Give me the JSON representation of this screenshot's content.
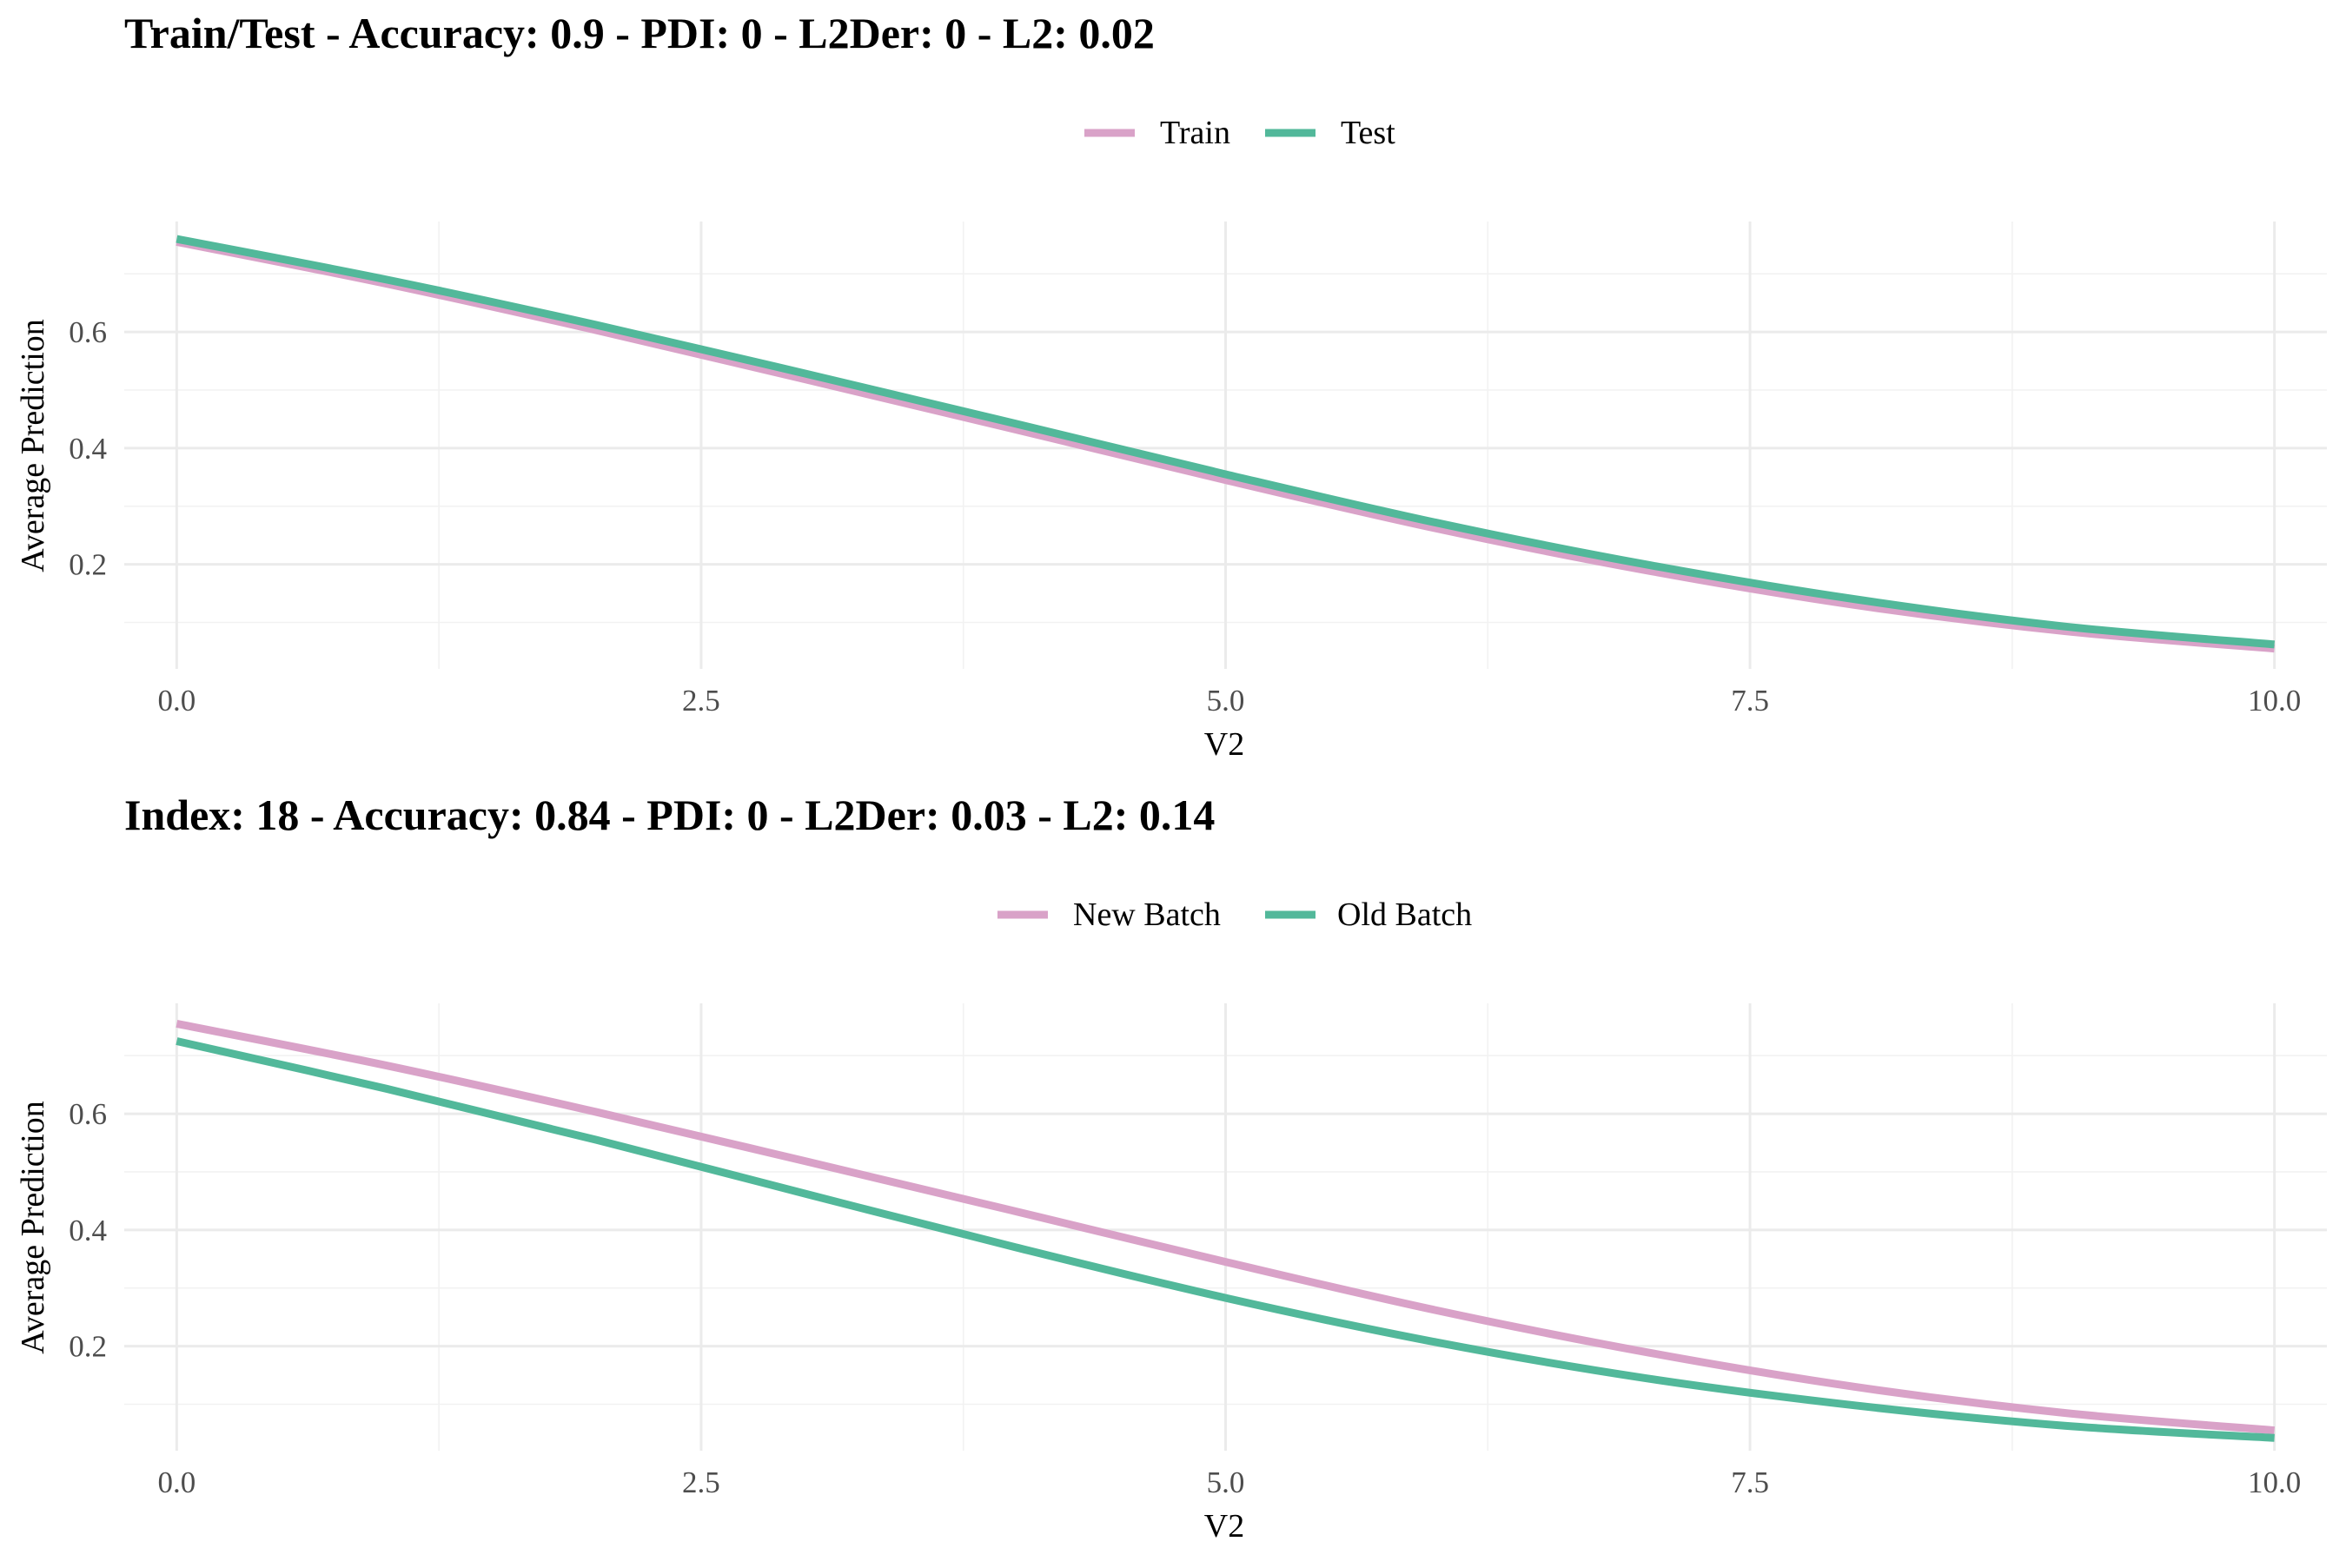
{
  "chart_data": [
    {
      "type": "line",
      "title": "Train/Test - Accuracy: 0.9 - PDI: 0 - L2Der: 0 - L2: 0.02",
      "xlabel": "V2",
      "ylabel": "Average Prediction",
      "xlim": [
        -0.25,
        10.25
      ],
      "ylim": [
        0.02,
        0.79
      ],
      "x_ticks": [
        0,
        2.5,
        5,
        7.5,
        10
      ],
      "x_tick_labels": [
        "0.0",
        "2.5",
        "5.0",
        "7.5",
        "10.0"
      ],
      "x_minor_ticks": [
        1.25,
        3.75,
        6.25,
        8.75
      ],
      "y_ticks": [
        0.2,
        0.4,
        0.6
      ],
      "y_tick_labels": [
        "0.2",
        "0.4",
        "0.6"
      ],
      "y_minor_ticks": [
        0.1,
        0.3,
        0.5,
        0.7
      ],
      "grid": true,
      "legend_position": "top-center",
      "series": [
        {
          "name": "Train",
          "color": "#d9a2c8",
          "x": [
            0,
            1,
            2,
            3,
            4,
            5,
            6,
            7,
            8,
            9,
            10
          ],
          "values": [
            0.755,
            0.683,
            0.603,
            0.518,
            0.432,
            0.345,
            0.262,
            0.19,
            0.13,
            0.085,
            0.055
          ]
        },
        {
          "name": "Test",
          "color": "#52b89a",
          "x": [
            0,
            1,
            2,
            3,
            4,
            5,
            6,
            7,
            8,
            9,
            10
          ],
          "values": [
            0.76,
            0.69,
            0.612,
            0.528,
            0.442,
            0.355,
            0.272,
            0.2,
            0.14,
            0.093,
            0.062
          ]
        }
      ]
    },
    {
      "type": "line",
      "title": "Index: 18 - Accuracy: 0.84 - PDI: 0 - L2Der: 0.03 - L2: 0.14",
      "xlabel": "V2",
      "ylabel": "Average Prediction",
      "xlim": [
        -0.25,
        10.25
      ],
      "ylim": [
        0.02,
        0.79
      ],
      "x_ticks": [
        0,
        2.5,
        5,
        7.5,
        10
      ],
      "x_tick_labels": [
        "0.0",
        "2.5",
        "5.0",
        "7.5",
        "10.0"
      ],
      "x_minor_ticks": [
        1.25,
        3.75,
        6.25,
        8.75
      ],
      "y_ticks": [
        0.2,
        0.4,
        0.6
      ],
      "y_tick_labels": [
        "0.2",
        "0.4",
        "0.6"
      ],
      "y_minor_ticks": [
        0.1,
        0.3,
        0.5,
        0.7
      ],
      "grid": true,
      "legend_position": "top-center",
      "series": [
        {
          "name": "New Batch",
          "color": "#d9a2c8",
          "x": [
            0,
            1,
            2,
            3,
            4,
            5,
            6,
            7,
            8,
            9,
            10
          ],
          "values": [
            0.755,
            0.683,
            0.603,
            0.518,
            0.432,
            0.345,
            0.262,
            0.19,
            0.13,
            0.085,
            0.055
          ]
        },
        {
          "name": "Old Batch",
          "color": "#52b89a",
          "x": [
            0,
            1,
            2,
            3,
            4,
            5,
            6,
            7,
            8,
            9,
            10
          ],
          "values": [
            0.725,
            0.643,
            0.555,
            0.462,
            0.37,
            0.283,
            0.207,
            0.145,
            0.098,
            0.063,
            0.042
          ]
        }
      ]
    }
  ]
}
